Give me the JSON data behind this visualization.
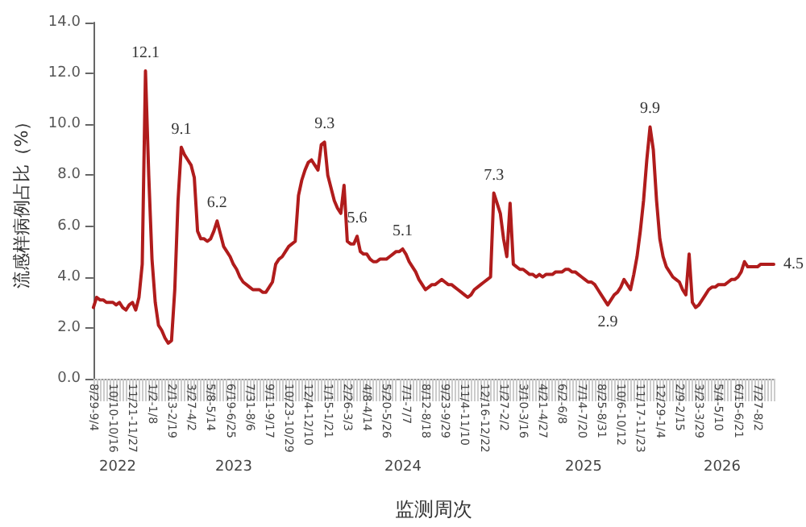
{
  "chart_data": {
    "type": "line",
    "xlabel": "监测周次",
    "ylabel": "流感样病例占比（%）",
    "categories": [
      "8/29-9/4",
      null,
      null,
      null,
      null,
      null,
      "10/10-10/16",
      null,
      null,
      null,
      null,
      null,
      "11/21-11/27",
      null,
      null,
      null,
      null,
      null,
      "1/2-1/8",
      null,
      null,
      null,
      null,
      null,
      "2/13-2/19",
      null,
      null,
      null,
      null,
      null,
      "3/27-4/2",
      null,
      null,
      null,
      null,
      null,
      "5/8-5/14",
      null,
      null,
      null,
      null,
      null,
      "6/19-6/25",
      null,
      null,
      null,
      null,
      null,
      "7/31-8/6",
      null,
      null,
      null,
      null,
      null,
      "9/11-9/17",
      null,
      null,
      null,
      null,
      null,
      "10/23-10/29",
      null,
      null,
      null,
      null,
      null,
      "12/4-12/10",
      null,
      null,
      null,
      null,
      null,
      "1/15-1/21",
      null,
      null,
      null,
      null,
      null,
      "2/26-3/3",
      null,
      null,
      null,
      null,
      null,
      "4/8-4/14",
      null,
      null,
      null,
      null,
      null,
      "5/20-5/26",
      null,
      null,
      null,
      null,
      null,
      "7/1-7/7",
      null,
      null,
      null,
      null,
      null,
      "8/12-8/18",
      null,
      null,
      null,
      null,
      null,
      "9/23-9/29",
      null,
      null,
      null,
      null,
      null,
      "11/4-11/10",
      null,
      null,
      null,
      null,
      null,
      "12/16-12/22",
      null,
      null,
      null,
      null,
      null,
      "1/27-2/2",
      null,
      null,
      null,
      null,
      null,
      "3/10-3/16",
      null,
      null,
      null,
      null,
      null,
      "4/21-4/27",
      null,
      null,
      null,
      null,
      null,
      "6/2-6/8",
      null,
      null,
      null,
      null,
      null,
      "7/14-7/20",
      null,
      null,
      null,
      null,
      null,
      "8/25-8/31",
      null,
      null,
      null,
      null,
      null,
      "10/6-10/12",
      null,
      null,
      null,
      null,
      null,
      "11/17-11/23",
      null,
      null,
      null,
      null,
      null,
      "12/29-1/4",
      null,
      null,
      null,
      null,
      null,
      "2/9-2/15",
      null,
      null,
      null,
      null,
      null,
      "3/23-3/29",
      null,
      null,
      null,
      null,
      null,
      "5/4-5/10",
      null,
      null,
      null,
      null,
      null,
      "6/15-6/21",
      null,
      null,
      null,
      null,
      null,
      "7/27-8/2",
      null,
      null,
      null,
      null,
      null
    ],
    "series": [
      {
        "color": "#b01c1c",
        "values": [
          2.8,
          3.2,
          3.1,
          3.1,
          3.0,
          3.0,
          3.0,
          2.9,
          3.0,
          2.8,
          2.7,
          2.9,
          3.0,
          2.7,
          3.2,
          4.5,
          12.1,
          8.0,
          4.7,
          3.0,
          2.1,
          1.9,
          1.6,
          1.4,
          1.5,
          3.5,
          7.0,
          9.1,
          8.8,
          8.6,
          8.4,
          7.9,
          5.8,
          5.5,
          5.5,
          5.4,
          5.5,
          5.8,
          6.2,
          5.7,
          5.2,
          5.0,
          4.8,
          4.5,
          4.3,
          4.0,
          3.8,
          3.7,
          3.6,
          3.5,
          3.5,
          3.5,
          3.4,
          3.4,
          3.6,
          3.8,
          4.5,
          4.7,
          4.8,
          5.0,
          5.2,
          5.3,
          5.4,
          7.2,
          7.8,
          8.2,
          8.5,
          8.6,
          8.4,
          8.2,
          9.2,
          9.3,
          8.0,
          7.5,
          7.0,
          6.7,
          6.5,
          7.6,
          5.4,
          5.3,
          5.3,
          5.6,
          5.0,
          4.9,
          4.9,
          4.7,
          4.6,
          4.6,
          4.7,
          4.7,
          4.7,
          4.8,
          4.9,
          5.0,
          5.0,
          5.1,
          4.9,
          4.6,
          4.4,
          4.2,
          3.9,
          3.7,
          3.5,
          3.6,
          3.7,
          3.7,
          3.8,
          3.9,
          3.8,
          3.7,
          3.7,
          3.6,
          3.5,
          3.4,
          3.3,
          3.2,
          3.3,
          3.5,
          3.6,
          3.7,
          3.8,
          3.9,
          4.0,
          7.3,
          6.9,
          6.5,
          5.5,
          4.8,
          6.9,
          4.5,
          4.4,
          4.3,
          4.3,
          4.2,
          4.1,
          4.1,
          4.0,
          4.1,
          4.0,
          4.1,
          4.1,
          4.1,
          4.2,
          4.2,
          4.2,
          4.3,
          4.3,
          4.2,
          4.2,
          4.1,
          4.0,
          3.9,
          3.8,
          3.8,
          3.7,
          3.5,
          3.3,
          3.1,
          2.9,
          3.1,
          3.3,
          3.4,
          3.6,
          3.9,
          3.7,
          3.5,
          4.1,
          4.8,
          5.8,
          7.0,
          8.6,
          9.9,
          9.0,
          7.0,
          5.5,
          4.8,
          4.4,
          4.2,
          4.0,
          3.9,
          3.8,
          3.5,
          3.3,
          4.9,
          3.0,
          2.8,
          2.9,
          3.1,
          3.3,
          3.5,
          3.6,
          3.6,
          3.7,
          3.7,
          3.7,
          3.8,
          3.9,
          3.9,
          4.0,
          4.2,
          4.6,
          4.4,
          4.4,
          4.4,
          4.4,
          4.5,
          4.5,
          4.5,
          4.5,
          4.5
        ],
        "value_labels": [
          null,
          null,
          null,
          null,
          null,
          null,
          null,
          null,
          null,
          null,
          null,
          null,
          null,
          null,
          null,
          null,
          "12.1",
          null,
          null,
          null,
          null,
          null,
          null,
          null,
          null,
          null,
          null,
          "9.1",
          null,
          null,
          null,
          null,
          null,
          null,
          null,
          null,
          null,
          null,
          "6.2",
          null,
          null,
          null,
          null,
          null,
          null,
          null,
          null,
          null,
          null,
          null,
          null,
          null,
          null,
          null,
          null,
          null,
          null,
          null,
          null,
          null,
          null,
          null,
          null,
          null,
          null,
          null,
          null,
          null,
          null,
          null,
          null,
          "9.3",
          null,
          null,
          null,
          null,
          null,
          null,
          null,
          null,
          null,
          "5.6",
          null,
          null,
          null,
          null,
          null,
          null,
          null,
          null,
          null,
          null,
          null,
          null,
          null,
          "5.1",
          null,
          null,
          null,
          null,
          null,
          null,
          null,
          null,
          null,
          null,
          null,
          null,
          null,
          null,
          null,
          null,
          null,
          null,
          null,
          null,
          null,
          null,
          null,
          null,
          null,
          null,
          null,
          "7.3",
          null,
          null,
          null,
          null,
          null,
          null,
          null,
          null,
          null,
          null,
          null,
          null,
          null,
          null,
          null,
          null,
          null,
          null,
          null,
          null,
          null,
          null,
          null,
          null,
          null,
          null,
          null,
          null,
          null,
          null,
          null,
          null,
          null,
          null,
          "2.9",
          null,
          null,
          null,
          null,
          null,
          null,
          null,
          null,
          null,
          null,
          null,
          null,
          "9.9",
          null,
          null,
          null,
          null,
          null,
          null,
          null,
          null,
          null,
          null,
          null,
          null,
          null,
          null,
          null,
          null,
          null,
          null,
          null,
          null,
          null,
          null,
          null,
          null,
          null,
          null,
          null,
          null,
          null,
          null,
          null,
          null,
          null,
          null,
          null,
          null,
          null,
          "4.5"
        ]
      }
    ],
    "ylim": [
      0,
      14
    ],
    "yticks": [
      {
        "value": 0,
        "label": "0.0"
      },
      {
        "value": 2,
        "label": "2.0"
      },
      {
        "value": 4,
        "label": "4.0"
      },
      {
        "value": 6,
        "label": "6.0"
      },
      {
        "value": 8,
        "label": "8.0"
      },
      {
        "value": 10,
        "label": "10.0"
      },
      {
        "value": 12,
        "label": "12.0"
      },
      {
        "value": 14,
        "label": "14.0"
      }
    ],
    "annotations": [
      "2022",
      "2023",
      "2024",
      "2025",
      "2026"
    ],
    "marker": "none",
    "line_style": "solid",
    "grid": false
  }
}
